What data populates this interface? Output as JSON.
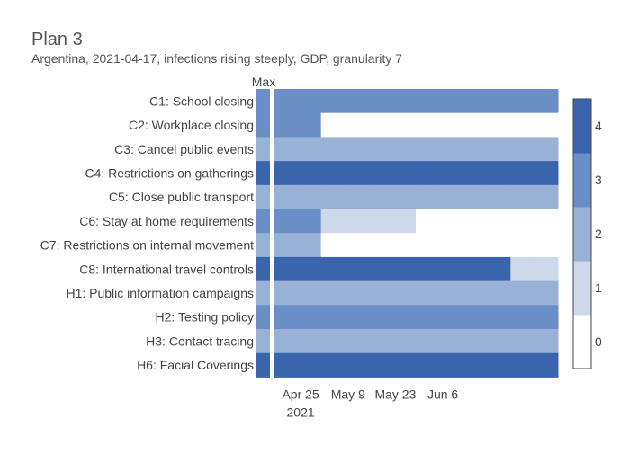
{
  "chart_data": {
    "type": "heatmap",
    "title": "Plan 3",
    "subtitle": "Argentina, 2021-04-17, infections rising steeply, GDP, granularity 7",
    "max_column_label": "Max",
    "x_ticks": [
      {
        "date": "2021-04-25",
        "label": "Apr 25",
        "sublabel": "2021"
      },
      {
        "date": "2021-05-09",
        "label": "May 9",
        "sublabel": ""
      },
      {
        "date": "2021-05-23",
        "label": "May 23",
        "sublabel": ""
      },
      {
        "date": "2021-06-06",
        "label": "Jun 6",
        "sublabel": ""
      }
    ],
    "x_start": "2021-04-17",
    "period_days": 7,
    "periods": 12,
    "colorbar": {
      "ticks": [
        0,
        1,
        2,
        3,
        4
      ],
      "colors": [
        "#ffffff",
        "#cdd8ea",
        "#9ab1d6",
        "#6a8fc6",
        "#3a65ad"
      ]
    },
    "rows": [
      {
        "label": "C1: School closing",
        "max": 3,
        "values": [
          3,
          3,
          3,
          3,
          3,
          3,
          3,
          3,
          3,
          3,
          3,
          3
        ]
      },
      {
        "label": "C2: Workplace closing",
        "max": 3,
        "values": [
          3,
          3,
          0,
          0,
          0,
          0,
          0,
          0,
          0,
          0,
          0,
          0
        ]
      },
      {
        "label": "C3: Cancel public events",
        "max": 2,
        "values": [
          2,
          2,
          2,
          2,
          2,
          2,
          2,
          2,
          2,
          2,
          2,
          2
        ]
      },
      {
        "label": "C4: Restrictions on gatherings",
        "max": 4,
        "values": [
          4,
          4,
          4,
          4,
          4,
          4,
          4,
          4,
          4,
          4,
          4,
          4
        ]
      },
      {
        "label": "C5: Close public transport",
        "max": 2,
        "values": [
          2,
          2,
          2,
          2,
          2,
          2,
          2,
          2,
          2,
          2,
          2,
          2
        ]
      },
      {
        "label": "C6: Stay at home requirements",
        "max": 3,
        "values": [
          3,
          3,
          1,
          1,
          1,
          1,
          0,
          0,
          0,
          0,
          0,
          0
        ]
      },
      {
        "label": "C7: Restrictions on internal movement",
        "max": 2,
        "values": [
          2,
          2,
          0,
          0,
          0,
          0,
          0,
          0,
          0,
          0,
          0,
          0
        ]
      },
      {
        "label": "C8: International travel controls",
        "max": 4,
        "values": [
          4,
          4,
          4,
          4,
          4,
          4,
          4,
          4,
          4,
          4,
          1,
          1
        ]
      },
      {
        "label": "H1: Public information campaigns",
        "max": 2,
        "values": [
          2,
          2,
          2,
          2,
          2,
          2,
          2,
          2,
          2,
          2,
          2,
          2
        ]
      },
      {
        "label": "H2: Testing policy",
        "max": 3,
        "values": [
          3,
          3,
          3,
          3,
          3,
          3,
          3,
          3,
          3,
          3,
          3,
          3
        ]
      },
      {
        "label": "H3: Contact tracing",
        "max": 2,
        "values": [
          2,
          2,
          2,
          2,
          2,
          2,
          2,
          2,
          2,
          2,
          2,
          2
        ]
      },
      {
        "label": "H6: Facial Coverings",
        "max": 4,
        "values": [
          4,
          4,
          4,
          4,
          4,
          4,
          4,
          4,
          4,
          4,
          4,
          4
        ]
      }
    ]
  }
}
